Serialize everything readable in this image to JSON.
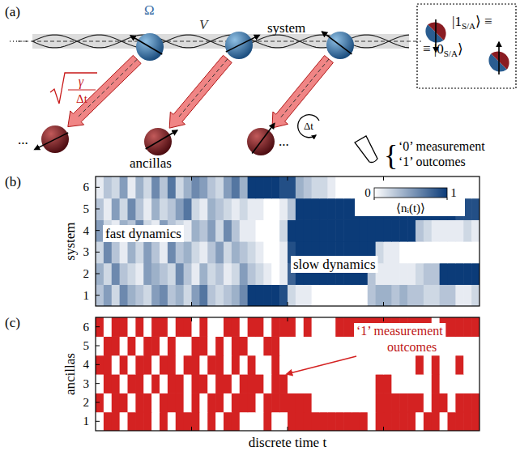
{
  "diagram": {
    "panel_label": "(a)",
    "coupling": "Ω",
    "interaction": "V",
    "system": "system",
    "ancillas": "ancillas",
    "rate_numerator": "γ",
    "rate_denominator": "Δt",
    "timestep": "Δt",
    "ellipsis": "...",
    "outcome_brace": "{",
    "outcome_lines": [
      "‘0’ measurement",
      "‘1’ outcomes"
    ],
    "legend": {
      "ket_one": [
        "|1",
        "S/A",
        "⟩ ≡"
      ],
      "ket_zero": [
        "≡ |0",
        "S/A",
        "⟩"
      ]
    }
  },
  "chart_data": [
    {
      "type": "heatmap",
      "panel_label": "(b)",
      "ylabel": "system",
      "xlim": [
        0,
        48
      ],
      "xticks": [
        12,
        24,
        36
      ],
      "ylim": [
        0.5,
        6.5
      ],
      "yticks": [
        1,
        2,
        3,
        4,
        5,
        6
      ],
      "tick_labels": "y",
      "color": "#0b3b78",
      "colorbar": {
        "label": "⟨nᵢ(t)⟩",
        "range": [
          0,
          1
        ],
        "ticks": [
          0,
          1
        ]
      },
      "annotations": [
        "fast dynamics",
        "slow dynamics"
      ],
      "rows": [
        [
          0.3,
          0.5,
          0.2,
          0.6,
          0.4,
          0.3,
          0.2,
          0.5,
          0.6,
          0.3,
          0.4,
          0.2,
          0.5,
          0.7,
          0.3,
          0.2,
          0.3,
          0.4,
          0.6,
          1,
          1,
          1,
          1,
          0.9,
          0.2,
          0.1,
          0.1,
          0,
          0,
          0,
          0,
          0,
          0,
          0,
          0.3,
          0.4,
          0.4,
          0.3,
          0.4,
          0.3,
          0.3,
          0.2,
          0.2,
          0.3,
          0.3,
          0.1,
          0.1,
          0.2
        ],
        [
          0.4,
          0.2,
          0.6,
          0.3,
          0.2,
          0.1,
          0.5,
          0.4,
          0.3,
          0.2,
          0.6,
          0.3,
          0.1,
          0.4,
          0.2,
          0.3,
          0.1,
          0.2,
          0.5,
          0.3,
          0.2,
          0.1,
          0,
          0.1,
          0.8,
          1,
          1,
          1,
          1,
          1,
          1,
          1,
          1,
          1,
          0.3,
          0.1,
          0.1,
          0.1,
          0.1,
          0.1,
          0.2,
          0.3,
          0.3,
          1,
          1,
          1,
          1,
          1
        ],
        [
          0.2,
          0.6,
          0.3,
          0.1,
          0.4,
          0.2,
          0.5,
          0.3,
          0.1,
          0.6,
          0.3,
          0.4,
          0.2,
          0.1,
          0.3,
          0.5,
          0.2,
          0.4,
          0.3,
          0.2,
          0.1,
          0,
          0,
          0.1,
          0.9,
          1,
          1,
          1,
          1,
          1,
          1,
          1,
          1,
          1,
          1,
          0.2,
          0.1,
          0.1,
          0,
          0,
          0,
          0,
          0,
          0,
          0,
          0,
          0,
          0
        ],
        [
          0.5,
          0.2,
          0.1,
          0.4,
          0.3,
          0.6,
          0.2,
          0.1,
          0.5,
          0.3,
          0.2,
          0.1,
          0.4,
          0.3,
          0.5,
          0.2,
          0.6,
          0.3,
          0.1,
          0.1,
          0,
          0,
          0,
          0.2,
          1,
          1,
          1,
          1,
          1,
          1,
          1,
          1,
          1,
          1,
          1,
          1,
          1,
          1,
          1,
          1,
          0.3,
          0.2,
          0.1,
          0.1,
          0.1,
          0.1,
          0.2,
          0.1
        ],
        [
          0.3,
          0.1,
          0.5,
          0.2,
          0.6,
          0.3,
          0.1,
          0.4,
          0.2,
          0.3,
          0.5,
          0.7,
          0.2,
          0.1,
          0.4,
          0.3,
          0.2,
          0.1,
          0.2,
          0.1,
          0.1,
          0,
          0,
          0.1,
          0.3,
          1,
          1,
          1,
          1,
          1,
          1,
          1,
          1,
          1,
          1,
          1,
          1,
          1,
          1,
          1,
          1,
          1,
          1,
          1,
          1,
          0.9,
          0.9,
          0.9
        ],
        [
          0.1,
          0.3,
          0.2,
          0.5,
          0.1,
          0.4,
          0.2,
          0.6,
          0.3,
          0.7,
          0.2,
          0.4,
          0.6,
          0.5,
          0.3,
          0.2,
          0.5,
          0.7,
          0.4,
          1,
          1,
          1,
          1,
          0.9,
          0.9,
          0.4,
          0.3,
          0.2,
          0.2,
          0.1,
          0,
          0,
          0,
          0,
          0,
          0,
          0,
          0,
          0,
          0,
          0,
          0,
          0,
          0,
          0,
          0,
          0,
          0
        ]
      ]
    },
    {
      "type": "heatmap",
      "panel_label": "(c)",
      "ylabel": "ancillas",
      "xlabel": "discrete time t",
      "xlim": [
        0,
        48
      ],
      "xticks": [
        12,
        24,
        36
      ],
      "ylim": [
        0.5,
        6.5
      ],
      "yticks": [
        1,
        2,
        3,
        4,
        5,
        6
      ],
      "tick_labels": "y",
      "color": "#d42222",
      "annotation": [
        "‘1’ measurement",
        "outcomes"
      ],
      "rows": [
        [
          0,
          1,
          1,
          0,
          1,
          1,
          1,
          0,
          1,
          0,
          1,
          1,
          1,
          0,
          1,
          0,
          1,
          1,
          0,
          0,
          0,
          1,
          0,
          0,
          1,
          1,
          1,
          1,
          1,
          1,
          1,
          1,
          1,
          1,
          0,
          1,
          1,
          1,
          1,
          1,
          0,
          1,
          1,
          0,
          1,
          1,
          1,
          1
        ],
        [
          1,
          0,
          1,
          1,
          0,
          1,
          1,
          0,
          1,
          1,
          1,
          0,
          1,
          0,
          1,
          1,
          0,
          1,
          1,
          1,
          0,
          1,
          1,
          1,
          1,
          1,
          1,
          0,
          0,
          0,
          0,
          0,
          0,
          0,
          0,
          1,
          1,
          1,
          1,
          1,
          1,
          0,
          1,
          1,
          0,
          1,
          1,
          1
        ],
        [
          0,
          1,
          1,
          0,
          1,
          1,
          0,
          1,
          0,
          1,
          1,
          0,
          1,
          1,
          0,
          1,
          1,
          0,
          1,
          1,
          1,
          0,
          1,
          1,
          0,
          0,
          0,
          0,
          0,
          0,
          0,
          0,
          0,
          0,
          0,
          1,
          1,
          0,
          0,
          0,
          0,
          0,
          1,
          0,
          0,
          0,
          0,
          0
        ],
        [
          1,
          1,
          0,
          1,
          0,
          1,
          1,
          0,
          1,
          1,
          0,
          1,
          1,
          0,
          1,
          1,
          0,
          1,
          0,
          1,
          0,
          0,
          1,
          0,
          0,
          0,
          0,
          0,
          0,
          0,
          0,
          0,
          0,
          0,
          0,
          0,
          0,
          0,
          0,
          0,
          1,
          0,
          1,
          0,
          0,
          1,
          0,
          0
        ],
        [
          0,
          1,
          1,
          0,
          1,
          0,
          1,
          1,
          0,
          1,
          0,
          0,
          1,
          1,
          0,
          1,
          0,
          1,
          1,
          0,
          0,
          1,
          1,
          0,
          0,
          0,
          0,
          0,
          0,
          0,
          0,
          0,
          0,
          0,
          0,
          0,
          0,
          0,
          0,
          0,
          0,
          0,
          0,
          0,
          0,
          0,
          0,
          0
        ],
        [
          1,
          0,
          1,
          1,
          0,
          1,
          0,
          1,
          1,
          0,
          1,
          1,
          0,
          1,
          0,
          0,
          1,
          1,
          0,
          1,
          1,
          0,
          1,
          1,
          1,
          0,
          1,
          0,
          0,
          0,
          1,
          1,
          1,
          1,
          1,
          1,
          1,
          1,
          1,
          1,
          1,
          1,
          0,
          1,
          1,
          1,
          1,
          1
        ]
      ]
    }
  ]
}
